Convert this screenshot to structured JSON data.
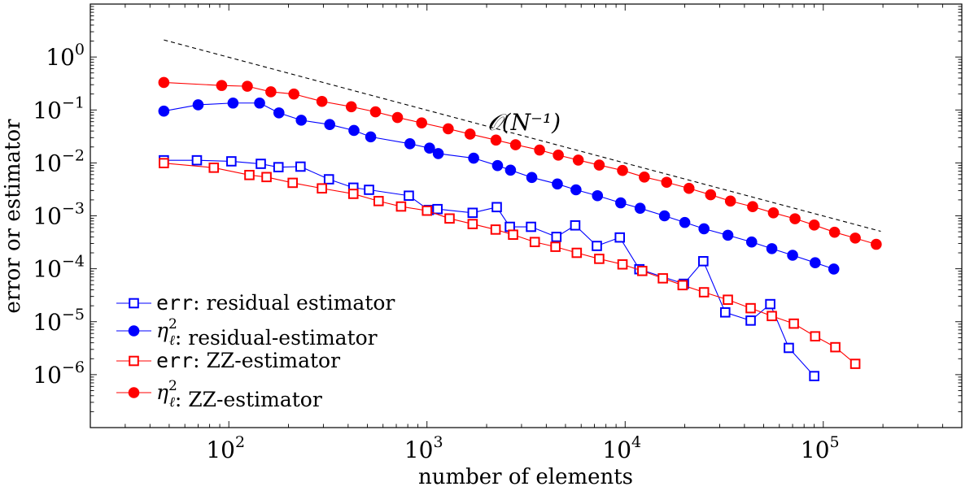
{
  "chart_data": {
    "type": "line",
    "xlabel": "number of elements",
    "ylabel": "error or estimator",
    "x_scale": "log",
    "y_scale": "log",
    "xlim": [
      20,
      500000
    ],
    "ylim": [
      1e-07,
      10
    ],
    "x_ticks": [
      {
        "base": "10",
        "exp": "2",
        "value": 100
      },
      {
        "base": "10",
        "exp": "3",
        "value": 1000
      },
      {
        "base": "10",
        "exp": "4",
        "value": 10000
      },
      {
        "base": "10",
        "exp": "5",
        "value": 100000
      }
    ],
    "y_ticks": [
      {
        "base": "10",
        "exp": "0",
        "value": 1
      },
      {
        "base": "10",
        "exp": "−1",
        "value": 0.1
      },
      {
        "base": "10",
        "exp": "−2",
        "value": 0.01
      },
      {
        "base": "10",
        "exp": "−3",
        "value": 0.001
      },
      {
        "base": "10",
        "exp": "−4",
        "value": 0.0001
      },
      {
        "base": "10",
        "exp": "−5",
        "value": 1e-05
      },
      {
        "base": "10",
        "exp": "−6",
        "value": 1e-06
      }
    ],
    "grid": false,
    "legend_position": "bottom-left",
    "series": [
      {
        "name_code": "err",
        "name_text": ": residual estimator",
        "color": "#0000ff",
        "marker": "square-open",
        "points": [
          [
            47,
            0.0112
          ],
          [
            69,
            0.0112
          ],
          [
            103,
            0.0107
          ],
          [
            145,
            0.0096
          ],
          [
            178,
            0.0083
          ],
          [
            230,
            0.0085
          ],
          [
            320,
            0.0049
          ],
          [
            425,
            0.0034
          ],
          [
            510,
            0.0031
          ],
          [
            810,
            0.0024
          ],
          [
            1020,
            0.00129
          ],
          [
            1130,
            0.00134
          ],
          [
            1700,
            0.00114
          ],
          [
            2250,
            0.00146
          ],
          [
            2620,
            0.00062
          ],
          [
            3350,
            0.00062
          ],
          [
            4500,
            0.0004
          ],
          [
            5600,
            0.00066
          ],
          [
            7200,
            0.00027
          ],
          [
            9400,
            0.00039
          ],
          [
            11800,
            9.8e-05
          ],
          [
            19800,
            5.2e-05
          ],
          [
            24800,
            0.000139
          ],
          [
            32000,
            1.5e-05
          ],
          [
            43000,
            1.05e-05
          ],
          [
            54000,
            2.15e-05
          ],
          [
            67000,
            3.2e-06
          ],
          [
            90000,
            9.4e-07
          ]
        ]
      },
      {
        "name_symbol": "η",
        "name_sub": "ℓ",
        "name_sup": "2",
        "name_text": ": residual-estimator",
        "color": "#0000ff",
        "marker": "circle-filled",
        "points": [
          [
            47,
            0.095
          ],
          [
            70,
            0.125
          ],
          [
            105,
            0.135
          ],
          [
            143,
            0.135
          ],
          [
            179,
            0.088
          ],
          [
            232,
            0.064
          ],
          [
            323,
            0.053
          ],
          [
            428,
            0.041
          ],
          [
            520,
            0.031
          ],
          [
            820,
            0.023
          ],
          [
            1030,
            0.019
          ],
          [
            1140,
            0.015
          ],
          [
            1720,
            0.0123
          ],
          [
            2270,
            0.0089
          ],
          [
            2640,
            0.0073
          ],
          [
            3380,
            0.0053
          ],
          [
            4550,
            0.004
          ],
          [
            5650,
            0.0031
          ],
          [
            7250,
            0.0024
          ],
          [
            9500,
            0.00176
          ],
          [
            11900,
            0.00139
          ],
          [
            15800,
            0.001
          ],
          [
            20000,
            0.00075
          ],
          [
            25000,
            0.00057
          ],
          [
            33000,
            0.00043
          ],
          [
            43500,
            0.00032
          ],
          [
            55000,
            0.00024
          ],
          [
            70000,
            0.00018
          ],
          [
            91000,
            0.00013
          ],
          [
            113000,
            9.9e-05
          ]
        ]
      },
      {
        "name_code": "err",
        "name_text": ": ZZ-estimator",
        "color": "#ff0000",
        "marker": "square-open",
        "points": [
          [
            47,
            0.0099
          ],
          [
            84,
            0.0081
          ],
          [
            127,
            0.0059
          ],
          [
            155,
            0.0054
          ],
          [
            210,
            0.0042
          ],
          [
            295,
            0.0033
          ],
          [
            425,
            0.0026
          ],
          [
            570,
            0.0019
          ],
          [
            740,
            0.0015
          ],
          [
            1000,
            0.00125
          ],
          [
            1300,
            0.00089
          ],
          [
            1700,
            0.0007
          ],
          [
            2220,
            0.00055
          ],
          [
            2720,
            0.00044
          ],
          [
            3500,
            0.00032
          ],
          [
            4450,
            0.00026
          ],
          [
            5700,
            0.0002
          ],
          [
            7400,
            0.000154
          ],
          [
            9700,
            0.000121
          ],
          [
            12200,
            9.1e-05
          ],
          [
            15500,
            6.6e-05
          ],
          [
            19500,
            4.9e-05
          ],
          [
            25000,
            3.6e-05
          ],
          [
            33000,
            2.6e-05
          ],
          [
            43000,
            1.8e-05
          ],
          [
            55000,
            1.28e-05
          ],
          [
            71000,
            9.2e-06
          ],
          [
            91000,
            5.3e-06
          ],
          [
            115000,
            3.3e-06
          ],
          [
            145000,
            1.6e-06
          ]
        ]
      },
      {
        "name_symbol": "η",
        "name_sub": "ℓ",
        "name_sup": "2",
        "name_text": ": ZZ-estimator",
        "color": "#ff0000",
        "marker": "circle-filled",
        "points": [
          [
            47,
            0.33
          ],
          [
            92,
            0.29
          ],
          [
            124,
            0.28
          ],
          [
            163,
            0.22
          ],
          [
            213,
            0.2
          ],
          [
            295,
            0.145
          ],
          [
            415,
            0.115
          ],
          [
            550,
            0.092
          ],
          [
            710,
            0.072
          ],
          [
            940,
            0.057
          ],
          [
            1280,
            0.044
          ],
          [
            1650,
            0.035
          ],
          [
            2230,
            0.027
          ],
          [
            2800,
            0.022
          ],
          [
            3700,
            0.0175
          ],
          [
            4600,
            0.014
          ],
          [
            5800,
            0.0113
          ],
          [
            7400,
            0.0091
          ],
          [
            9700,
            0.0072
          ],
          [
            12500,
            0.0054
          ],
          [
            16200,
            0.0043
          ],
          [
            21000,
            0.0033
          ],
          [
            27000,
            0.0025
          ],
          [
            34000,
            0.0019
          ],
          [
            44000,
            0.00149
          ],
          [
            56000,
            0.00114
          ],
          [
            72000,
            0.00088
          ],
          [
            90000,
            0.00067
          ],
          [
            114000,
            0.00049
          ],
          [
            145000,
            0.00038
          ],
          [
            185000,
            0.00029
          ]
        ]
      }
    ],
    "reference_line": {
      "label": "𝒪(N⁻¹)",
      "points": [
        [
          47,
          2.1
        ],
        [
          195000,
          0.00051
        ]
      ]
    }
  }
}
